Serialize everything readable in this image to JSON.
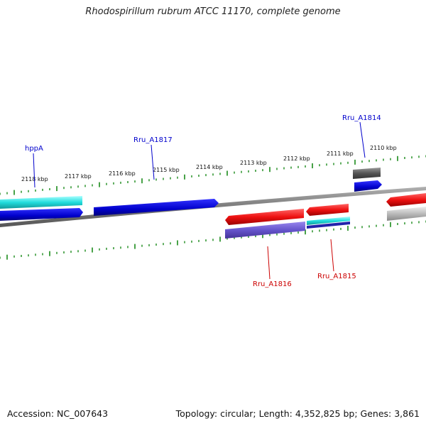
{
  "title": "Rhodospirillum rubrum ATCC 11170, complete genome",
  "footer": {
    "accession": "Accession: NC_007643",
    "summary": "Topology: circular; Length: 4,352,825 bp; Genes: 3,861"
  },
  "ticks": [
    "2118 kbp",
    "2117 kbp",
    "2116 kbp",
    "2115 kbp",
    "2114 kbp",
    "2113 kbp",
    "2112 kbp",
    "2111 kbp",
    "2110 kbp"
  ],
  "gene_labels": [
    {
      "text": "hppA",
      "color": "#0000cc"
    },
    {
      "text": "Rru_A1817",
      "color": "#0000cc"
    },
    {
      "text": "Rru_A1814",
      "color": "#0000cc"
    },
    {
      "text": "Rru_A1816",
      "color": "#cc0000"
    },
    {
      "text": "Rru_A1815",
      "color": "#cc0000"
    }
  ],
  "colors": {
    "backbone": "#808080",
    "tick": "#1a8a1a",
    "blue": "#0000dd",
    "cyan": "#22dddd",
    "red": "#ee1111",
    "purple": "#6655cc",
    "gray": "#666666",
    "lightgray": "#b8b8b8"
  }
}
